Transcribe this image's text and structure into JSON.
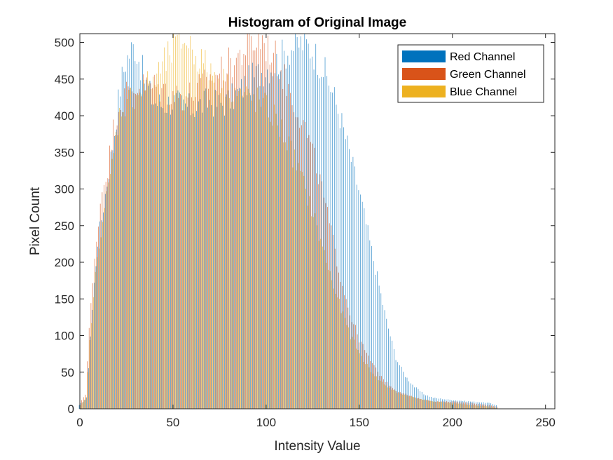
{
  "chart_data": {
    "type": "bar",
    "title": "Histogram of Original Image",
    "xlabel": "Intensity Value",
    "ylabel": "Pixel Count",
    "xlim": [
      0,
      255
    ],
    "ylim": [
      0,
      512
    ],
    "xticks": [
      0,
      50,
      100,
      150,
      200,
      250
    ],
    "yticks": [
      0,
      50,
      100,
      150,
      200,
      250,
      300,
      350,
      400,
      450,
      500
    ],
    "grid": false,
    "legend_position": "top-right",
    "series": [
      {
        "name": "Red Channel",
        "color": "#0072BD",
        "control_points": [
          [
            0,
            5
          ],
          [
            4,
            15
          ],
          [
            6,
            100
          ],
          [
            8,
            170
          ],
          [
            10,
            230
          ],
          [
            12,
            260
          ],
          [
            15,
            310
          ],
          [
            18,
            360
          ],
          [
            20,
            400
          ],
          [
            22,
            440
          ],
          [
            25,
            475
          ],
          [
            28,
            490
          ],
          [
            30,
            495
          ],
          [
            33,
            470
          ],
          [
            35,
            450
          ],
          [
            38,
            430
          ],
          [
            40,
            420
          ],
          [
            45,
            415
          ],
          [
            50,
            420
          ],
          [
            55,
            415
          ],
          [
            60,
            410
          ],
          [
            65,
            415
          ],
          [
            70,
            420
          ],
          [
            75,
            415
          ],
          [
            80,
            420
          ],
          [
            85,
            430
          ],
          [
            90,
            445
          ],
          [
            95,
            455
          ],
          [
            100,
            465
          ],
          [
            105,
            470
          ],
          [
            110,
            485
          ],
          [
            115,
            495
          ],
          [
            120,
            500
          ],
          [
            125,
            490
          ],
          [
            130,
            470
          ],
          [
            135,
            440
          ],
          [
            140,
            400
          ],
          [
            145,
            350
          ],
          [
            150,
            300
          ],
          [
            155,
            240
          ],
          [
            160,
            180
          ],
          [
            165,
            120
          ],
          [
            170,
            70
          ],
          [
            175,
            45
          ],
          [
            180,
            30
          ],
          [
            185,
            20
          ],
          [
            190,
            15
          ],
          [
            200,
            12
          ],
          [
            210,
            10
          ],
          [
            220,
            8
          ],
          [
            224,
            5
          ],
          [
            225,
            0
          ],
          [
            255,
            0
          ]
        ]
      },
      {
        "name": "Green Channel",
        "color": "#D95319",
        "control_points": [
          [
            0,
            8
          ],
          [
            3,
            20
          ],
          [
            5,
            110
          ],
          [
            8,
            200
          ],
          [
            10,
            260
          ],
          [
            12,
            300
          ],
          [
            15,
            330
          ],
          [
            18,
            380
          ],
          [
            20,
            405
          ],
          [
            22,
            420
          ],
          [
            25,
            430
          ],
          [
            30,
            440
          ],
          [
            35,
            440
          ],
          [
            40,
            440
          ],
          [
            45,
            435
          ],
          [
            50,
            430
          ],
          [
            55,
            425
          ],
          [
            60,
            430
          ],
          [
            65,
            440
          ],
          [
            70,
            450
          ],
          [
            75,
            460
          ],
          [
            80,
            470
          ],
          [
            85,
            480
          ],
          [
            90,
            495
          ],
          [
            95,
            500
          ],
          [
            98,
            505
          ],
          [
            100,
            495
          ],
          [
            105,
            480
          ],
          [
            110,
            450
          ],
          [
            115,
            420
          ],
          [
            120,
            390
          ],
          [
            125,
            350
          ],
          [
            130,
            300
          ],
          [
            135,
            240
          ],
          [
            140,
            180
          ],
          [
            145,
            130
          ],
          [
            150,
            95
          ],
          [
            155,
            70
          ],
          [
            160,
            50
          ],
          [
            165,
            35
          ],
          [
            170,
            25
          ],
          [
            180,
            15
          ],
          [
            190,
            10
          ],
          [
            200,
            10
          ],
          [
            210,
            8
          ],
          [
            220,
            5
          ],
          [
            224,
            3
          ],
          [
            225,
            0
          ],
          [
            255,
            0
          ]
        ]
      },
      {
        "name": "Blue Channel",
        "color": "#EDB120",
        "control_points": [
          [
            0,
            5
          ],
          [
            3,
            15
          ],
          [
            5,
            90
          ],
          [
            8,
            180
          ],
          [
            10,
            230
          ],
          [
            12,
            260
          ],
          [
            15,
            300
          ],
          [
            18,
            350
          ],
          [
            20,
            390
          ],
          [
            22,
            410
          ],
          [
            25,
            420
          ],
          [
            30,
            430
          ],
          [
            35,
            440
          ],
          [
            40,
            450
          ],
          [
            45,
            470
          ],
          [
            50,
            490
          ],
          [
            55,
            505
          ],
          [
            58,
            500
          ],
          [
            60,
            490
          ],
          [
            65,
            475
          ],
          [
            70,
            460
          ],
          [
            75,
            450
          ],
          [
            80,
            440
          ],
          [
            85,
            430
          ],
          [
            90,
            425
          ],
          [
            95,
            420
          ],
          [
            100,
            410
          ],
          [
            105,
            395
          ],
          [
            110,
            370
          ],
          [
            115,
            340
          ],
          [
            120,
            305
          ],
          [
            125,
            265
          ],
          [
            130,
            220
          ],
          [
            135,
            175
          ],
          [
            140,
            135
          ],
          [
            145,
            100
          ],
          [
            150,
            75
          ],
          [
            155,
            55
          ],
          [
            160,
            40
          ],
          [
            165,
            30
          ],
          [
            170,
            22
          ],
          [
            180,
            15
          ],
          [
            190,
            10
          ],
          [
            200,
            8
          ],
          [
            210,
            5
          ],
          [
            220,
            3
          ],
          [
            225,
            0
          ],
          [
            255,
            0
          ]
        ]
      }
    ]
  }
}
